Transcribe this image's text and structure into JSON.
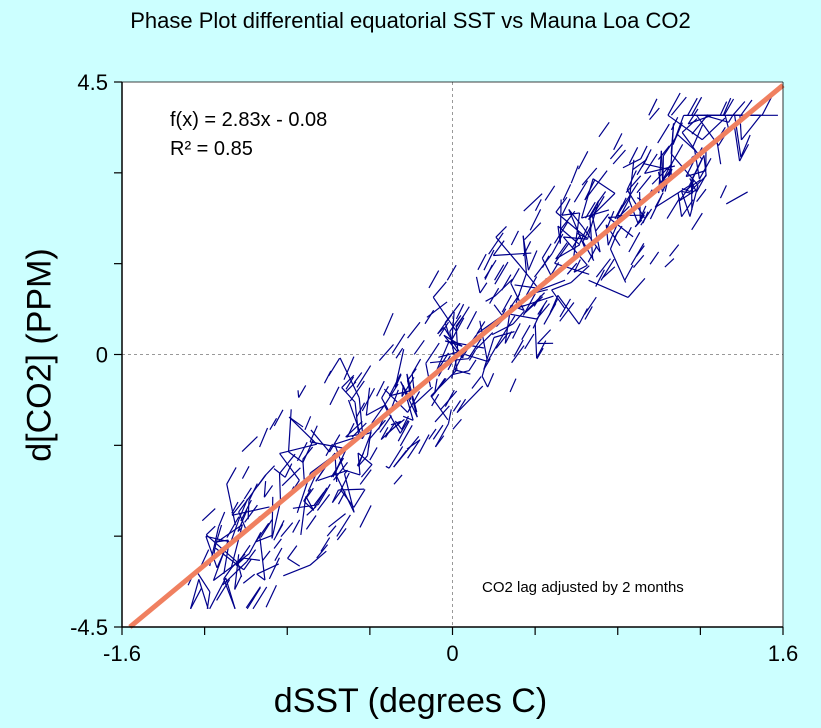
{
  "chart_data": {
    "type": "scatter",
    "title": "Phase Plot differential equatorial SST vs Mauna Loa CO2",
    "xlabel": "dSST (degrees C)",
    "ylabel": "d[CO2] (PPM)",
    "xlim": [
      -1.6,
      1.6
    ],
    "ylim": [
      -4.5,
      4.5
    ],
    "x_ticks": [
      -1.6,
      0,
      1.6
    ],
    "y_ticks": [
      -4.5,
      0,
      4.5
    ],
    "x_tick_labels": [
      "-1.6",
      "0",
      "1.6"
    ],
    "y_tick_labels": [
      "-4.5",
      "0",
      "4.5"
    ],
    "grid": "dashed at x=0 and y=0",
    "fit": {
      "label": "f(x) = 2.83x - 0.08",
      "r2_label": "R² = 0.85",
      "slope": 2.83,
      "intercept": -0.08
    },
    "annotation": "CO2 lag adjusted by 2 months",
    "series": [
      {
        "name": "phase segments",
        "color": "#00008b",
        "style": "short connected segments, ~600 points"
      },
      {
        "name": "linear fit",
        "color": "#f08060"
      }
    ]
  }
}
